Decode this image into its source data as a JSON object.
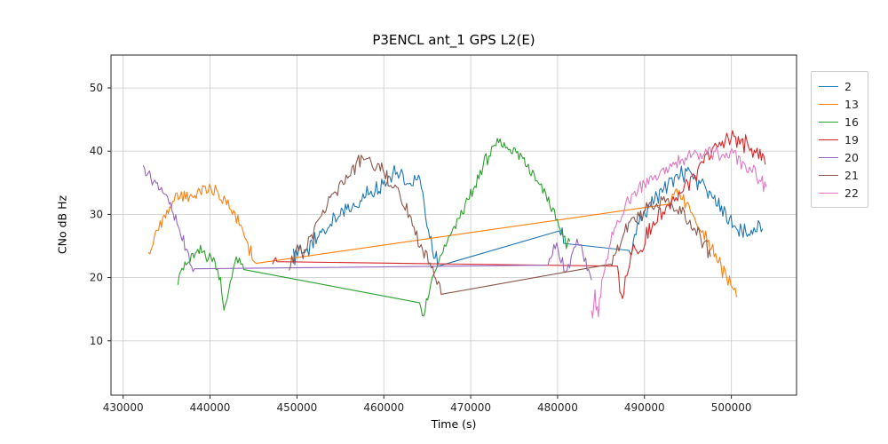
{
  "figure": {
    "title": "P3ENCL ant_1 GPS L2(E)",
    "xlabel": "Time (s)",
    "ylabel": "CNo dB Hz"
  },
  "chart_data": {
    "type": "line",
    "title": "P3ENCL ant_1 GPS L2(E)",
    "xlabel": "Time (s)",
    "ylabel": "CNo dB Hz",
    "grid": true,
    "legend_position": "right-outside",
    "x_ticks": [
      430000,
      440000,
      450000,
      460000,
      470000,
      480000,
      490000,
      500000
    ],
    "y_ticks": [
      10,
      20,
      30,
      40,
      50
    ],
    "x_range": [
      428600,
      507500
    ],
    "y_range": [
      1.4,
      55.2
    ],
    "series": [
      {
        "name": "2",
        "color": "#1f77b4",
        "noise": 1.8,
        "segments": [
          [
            [
              449600,
              23
            ],
            [
              450400,
              25
            ],
            [
              451200,
              23.5
            ],
            [
              452200,
              26
            ],
            [
              453400,
              28
            ],
            [
              454800,
              30
            ],
            [
              456200,
              31
            ],
            [
              457600,
              33
            ],
            [
              459000,
              34
            ],
            [
              460200,
              35.5
            ],
            [
              461200,
              37
            ],
            [
              462200,
              36.5
            ],
            [
              463200,
              34.5
            ],
            [
              464000,
              36
            ],
            [
              464800,
              30
            ],
            [
              465600,
              25
            ],
            [
              466200,
              22.2
            ]
          ],
          [
            [
              480200,
              26.8
            ],
            [
              480700,
              26
            ]
          ],
          [
            [
              488200,
              24
            ],
            [
              489200,
              28
            ],
            [
              490400,
              31
            ],
            [
              491600,
              33
            ],
            [
              493000,
              35
            ],
            [
              494400,
              36.5
            ],
            [
              495800,
              36
            ],
            [
              497000,
              34
            ],
            [
              498400,
              31.5
            ],
            [
              499800,
              29
            ],
            [
              501200,
              27.5
            ],
            [
              502600,
              27
            ],
            [
              503600,
              28
            ]
          ]
        ]
      },
      {
        "name": "13",
        "color": "#ff7f0e",
        "noise": 1.5,
        "segments": [
          [
            [
              432900,
              23
            ],
            [
              433600,
              26
            ],
            [
              434400,
              29
            ],
            [
              435200,
              31
            ],
            [
              436200,
              32.5
            ],
            [
              437200,
              33
            ],
            [
              438400,
              33.5
            ],
            [
              439600,
              34
            ],
            [
              440600,
              33.5
            ],
            [
              441600,
              32.5
            ],
            [
              442400,
              31
            ],
            [
              443200,
              29
            ],
            [
              444000,
              26.5
            ],
            [
              444700,
              24
            ],
            [
              445300,
              21.5
            ]
          ],
          [
            [
              492900,
              32.5
            ],
            [
              493700,
              33.5
            ],
            [
              494500,
              32.5
            ],
            [
              495300,
              30.5
            ],
            [
              496100,
              28.5
            ],
            [
              496900,
              26.5
            ],
            [
              497700,
              24.5
            ],
            [
              498500,
              22.5
            ],
            [
              499300,
              20.5
            ],
            [
              500100,
              18.5
            ],
            [
              500600,
              17
            ]
          ]
        ]
      },
      {
        "name": "16",
        "color": "#2ca02c",
        "noise": 1.3,
        "segments": [
          [
            [
              436300,
              20
            ],
            [
              437100,
              22
            ],
            [
              438000,
              23.5
            ],
            [
              438900,
              24
            ],
            [
              439800,
              23.5
            ],
            [
              440700,
              22.5
            ],
            [
              441200,
              20
            ],
            [
              441600,
              14
            ],
            [
              442000,
              16.5
            ],
            [
              442500,
              21
            ],
            [
              443200,
              23
            ],
            [
              443900,
              21
            ]
          ],
          [
            [
              464100,
              16
            ],
            [
              464600,
              14
            ],
            [
              465200,
              17.5
            ],
            [
              465900,
              21
            ],
            [
              466800,
              24
            ],
            [
              467800,
              27
            ],
            [
              468900,
              30
            ],
            [
              470000,
              33
            ],
            [
              471100,
              36.5
            ],
            [
              472100,
              39.5
            ],
            [
              472900,
              41
            ],
            [
              473700,
              41.2
            ],
            [
              474500,
              40.5
            ],
            [
              475400,
              39.5
            ],
            [
              476300,
              38.5
            ],
            [
              477300,
              36.5
            ],
            [
              478300,
              34
            ],
            [
              479300,
              31
            ],
            [
              480300,
              27.5
            ],
            [
              481000,
              25
            ],
            [
              481400,
              26
            ]
          ]
        ]
      },
      {
        "name": "19",
        "color": "#d62728",
        "noise": 1.8,
        "segments": [
          [
            [
              447200,
              22.8
            ],
            [
              447700,
              22.6
            ]
          ],
          [
            [
              486900,
              21
            ],
            [
              487300,
              17
            ],
            [
              487800,
              19
            ],
            [
              488300,
              23
            ],
            [
              488900,
              26
            ],
            [
              489600,
              24
            ],
            [
              490400,
              27
            ],
            [
              491300,
              29
            ],
            [
              492300,
              31
            ],
            [
              493300,
              32.5
            ],
            [
              494300,
              33.5
            ],
            [
              495300,
              35
            ],
            [
              496300,
              37
            ],
            [
              497300,
              39
            ],
            [
              498300,
              41
            ],
            [
              499300,
              42
            ],
            [
              500300,
              42
            ],
            [
              501300,
              41.5
            ],
            [
              502300,
              40.5
            ],
            [
              503300,
              39.5
            ],
            [
              503900,
              38.5
            ]
          ]
        ]
      },
      {
        "name": "20",
        "color": "#9467bd",
        "noise": 1.2,
        "segments": [
          [
            [
              432300,
              37.5
            ],
            [
              432900,
              36.5
            ],
            [
              433500,
              35.5
            ],
            [
              434100,
              34.5
            ],
            [
              434700,
              33.5
            ],
            [
              435300,
              31.5
            ],
            [
              435900,
              29.5
            ],
            [
              436500,
              27.5
            ],
            [
              437100,
              25
            ],
            [
              437700,
              22.5
            ],
            [
              438200,
              21
            ]
          ],
          [
            [
              478900,
              22
            ],
            [
              479400,
              24
            ],
            [
              479900,
              25
            ],
            [
              480400,
              23
            ],
            [
              480900,
              21
            ],
            [
              481400,
              22
            ],
            [
              481900,
              24.5
            ],
            [
              482400,
              26
            ],
            [
              482900,
              24
            ],
            [
              483400,
              21.5
            ],
            [
              483900,
              20
            ]
          ]
        ]
      },
      {
        "name": "21",
        "color": "#8c564b",
        "noise": 1.6,
        "segments": [
          [
            [
              449100,
              22
            ],
            [
              449900,
              24.5
            ],
            [
              450700,
              23.5
            ],
            [
              451500,
              26.5
            ],
            [
              452500,
              29
            ],
            [
              453500,
              31
            ],
            [
              454500,
              33.5
            ],
            [
              455500,
              35.5
            ],
            [
              456500,
              37.5
            ],
            [
              457400,
              38.5
            ],
            [
              458200,
              39
            ],
            [
              459000,
              38
            ],
            [
              459900,
              36.5
            ],
            [
              460800,
              35
            ],
            [
              461800,
              33
            ],
            [
              462800,
              30
            ],
            [
              463800,
              26.5
            ],
            [
              464800,
              23.5
            ],
            [
              465800,
              20.5
            ],
            [
              466600,
              18.7
            ]
          ],
          [
            [
              486100,
              22
            ],
            [
              486900,
              25
            ],
            [
              487700,
              27.5
            ],
            [
              488500,
              29
            ],
            [
              489400,
              30
            ],
            [
              490400,
              31
            ],
            [
              491400,
              32
            ],
            [
              492400,
              32
            ],
            [
              493400,
              31
            ],
            [
              494400,
              30
            ],
            [
              495400,
              28.5
            ],
            [
              496300,
              26.5
            ],
            [
              497000,
              25
            ],
            [
              497600,
              24
            ]
          ]
        ]
      },
      {
        "name": "22",
        "color": "#e377c2",
        "noise": 1.5,
        "segments": [
          [
            [
              483900,
              14
            ],
            [
              484300,
              17
            ],
            [
              484700,
              14.5
            ],
            [
              485100,
              19
            ],
            [
              485600,
              22.5
            ],
            [
              486100,
              25.5
            ],
            [
              486700,
              28
            ],
            [
              487400,
              30
            ],
            [
              488200,
              32
            ],
            [
              489200,
              34
            ],
            [
              490300,
              35
            ],
            [
              491400,
              36
            ],
            [
              492500,
              37
            ],
            [
              493600,
              38
            ],
            [
              494700,
              39
            ],
            [
              495800,
              39.5
            ],
            [
              496900,
              40
            ],
            [
              498000,
              39.5
            ],
            [
              499100,
              39
            ],
            [
              500200,
              39.5
            ],
            [
              501300,
              38
            ],
            [
              502400,
              37
            ],
            [
              503400,
              35.5
            ],
            [
              504000,
              34
            ]
          ]
        ]
      }
    ]
  }
}
